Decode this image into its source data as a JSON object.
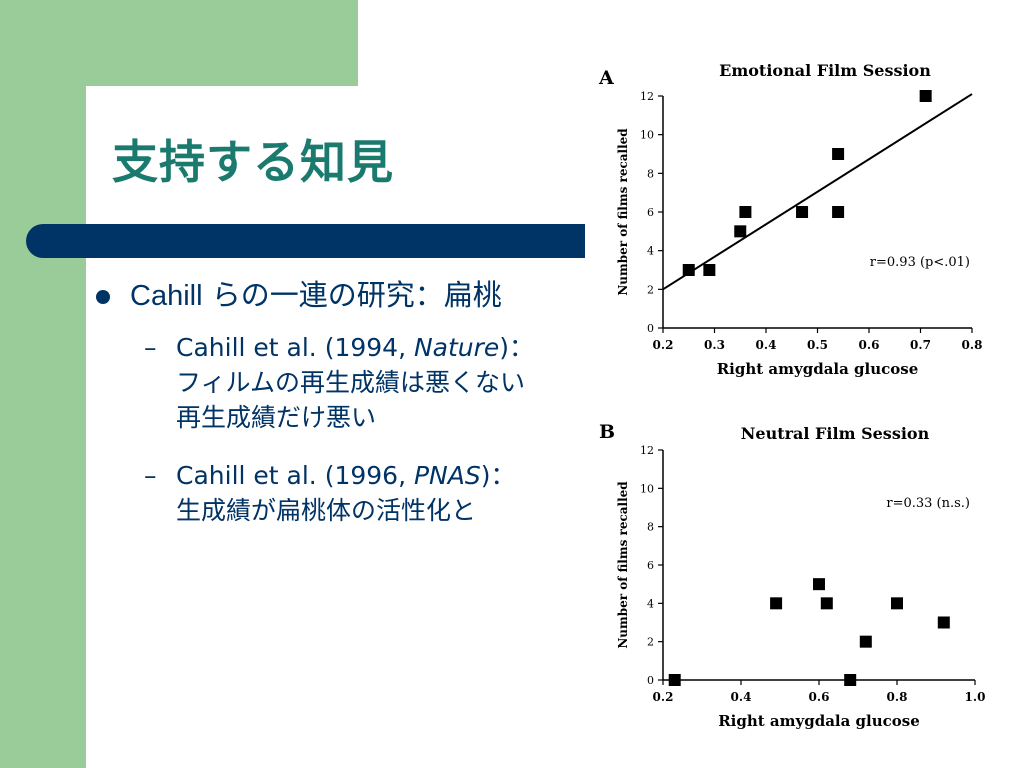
{
  "slide": {
    "title": "支持する知見",
    "bullet": {
      "text_prefix": "Cahill",
      "text_rest": " らの一連の研究：扁桃"
    },
    "subbullets": [
      {
        "dash": "–",
        "pre": "Cahill et al. (1994, ",
        "journal": "Nature",
        "post": ")：",
        "line2": "フィルムの再生成績は悪くない",
        "line3": "再生成績だけ悪い"
      },
      {
        "dash": "–",
        "pre": "Cahill et al. (1996, ",
        "journal": "PNAS",
        "post": ")：",
        "line2": "生成績が扁桃体の活性化と",
        "line3": ""
      }
    ]
  },
  "colors": {
    "green": "#99cc99",
    "navy": "#003366",
    "title": "#1a7a6e"
  },
  "chart_data": [
    {
      "type": "scatter",
      "panel_label": "A",
      "title": "Emotional Film Session",
      "xlabel": "Right amygdala glucose",
      "ylabel": "Number of films recalled",
      "xlim": [
        0.2,
        0.8
      ],
      "ylim": [
        0,
        12
      ],
      "xticks": [
        "0.2",
        "0.3",
        "0.4",
        "0.5",
        "0.6",
        "0.7",
        "0.8"
      ],
      "yticks": [
        "0",
        "2",
        "4",
        "6",
        "8",
        "10",
        "12"
      ],
      "points": [
        {
          "x": 0.25,
          "y": 3
        },
        {
          "x": 0.29,
          "y": 3
        },
        {
          "x": 0.35,
          "y": 5
        },
        {
          "x": 0.36,
          "y": 6
        },
        {
          "x": 0.47,
          "y": 6
        },
        {
          "x": 0.54,
          "y": 6
        },
        {
          "x": 0.54,
          "y": 9
        },
        {
          "x": 0.71,
          "y": 12
        }
      ],
      "fit_line": [
        {
          "x": 0.2,
          "y": 2.0
        },
        {
          "x": 0.8,
          "y": 12.1
        }
      ],
      "annotation": "r=0.93    (p<.01)"
    },
    {
      "type": "scatter",
      "panel_label": "B",
      "title": "Neutral Film Session",
      "xlabel": "Right amygdala glucose",
      "ylabel": "Number of films recalled",
      "xlim": [
        0.2,
        1.0
      ],
      "ylim": [
        0,
        12
      ],
      "xticks": [
        "0.2",
        "0.4",
        "0.6",
        "0.8",
        "1.0"
      ],
      "yticks": [
        "0",
        "2",
        "4",
        "6",
        "8",
        "10",
        "12"
      ],
      "points": [
        {
          "x": 0.23,
          "y": 0
        },
        {
          "x": 0.49,
          "y": 4
        },
        {
          "x": 0.6,
          "y": 5
        },
        {
          "x": 0.62,
          "y": 4
        },
        {
          "x": 0.68,
          "y": 0
        },
        {
          "x": 0.72,
          "y": 2
        },
        {
          "x": 0.8,
          "y": 4
        },
        {
          "x": 0.92,
          "y": 3
        }
      ],
      "annotation": "r=0.33   (n.s.)"
    }
  ]
}
